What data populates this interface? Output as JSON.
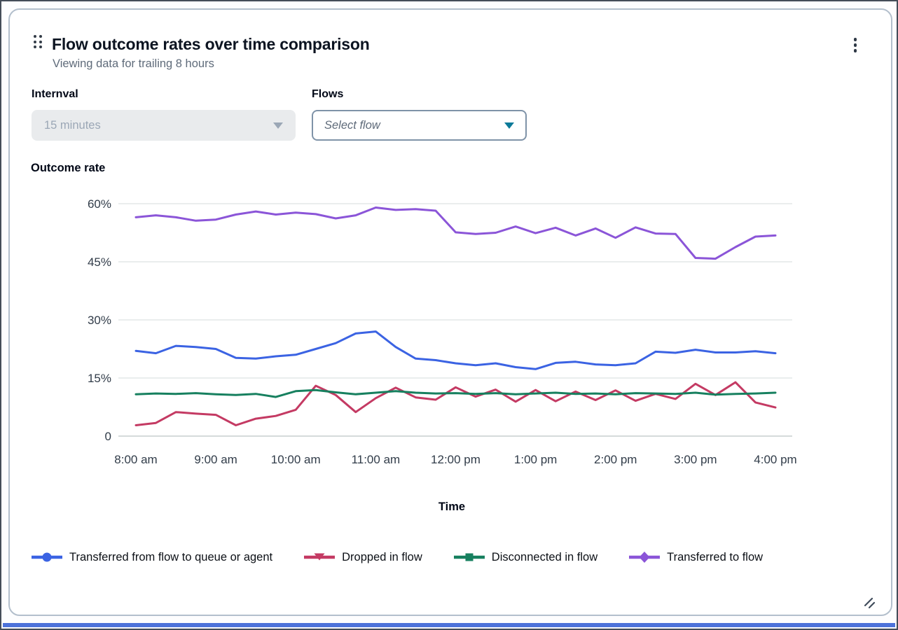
{
  "widget": {
    "title": "Flow outcome rates over time comparison",
    "subtitle": "Viewing data for trailing 8 hours"
  },
  "controls": {
    "interval": {
      "label": "Internval",
      "value": "15 minutes",
      "state": "disabled"
    },
    "flows": {
      "label": "Flows",
      "placeholder": "Select flow"
    }
  },
  "icons": {
    "drag_handle": "six-dot-drag-handle",
    "menu": "vertical-ellipsis",
    "interval_caret": "triangle-down",
    "flows_caret": "triangle-down",
    "resize": "diagonal-resize-lines"
  },
  "colors": {
    "card_border": "#b3bfcc",
    "grid_line": "#eaeded",
    "baseline": "#d5dbdb",
    "subtitle_text": "#5f6b7a",
    "disabled_bg": "#e9ebed",
    "flows_caret": "#0b7a99",
    "bottom_strip": "#4d72da"
  },
  "chart_data": {
    "type": "line",
    "title": "Outcome rate",
    "xlabel": "Time",
    "ylabel": "Outcome rate",
    "ylim": [
      0,
      60
    ],
    "grid": true,
    "legend_position": "bottom",
    "interval_minutes": 15,
    "x_range": [
      "8:00 am",
      "4:00 pm"
    ],
    "yticks": [
      0,
      15,
      30,
      45,
      60
    ],
    "ytick_labels": [
      "0",
      "15%",
      "30%",
      "45%",
      "60%"
    ],
    "x_tick_labels": [
      "8:00 am",
      "9:00 am",
      "10:00 am",
      "11:00 am",
      "12:00 pm",
      "1:00 pm",
      "2:00 pm",
      "3:00 pm",
      "4:00 pm"
    ],
    "series": [
      {
        "name": "Transferred from flow to queue or agent",
        "color": "#3b63e3",
        "marker": "circle",
        "values": [
          22.0,
          21.4,
          23.3,
          23.0,
          22.5,
          20.2,
          20.0,
          20.6,
          21.0,
          22.5,
          24.0,
          26.5,
          27.0,
          23.0,
          20.0,
          19.6,
          18.8,
          18.3,
          18.8,
          17.8,
          17.3,
          18.9,
          19.2,
          18.5,
          18.3,
          18.8,
          21.8,
          21.5,
          22.3,
          21.6,
          21.6,
          21.9,
          21.4
        ]
      },
      {
        "name": "Dropped in flow",
        "color": "#c43a63",
        "marker": "triangle-down",
        "values": [
          2.8,
          3.4,
          6.2,
          5.8,
          5.5,
          2.8,
          4.5,
          5.2,
          6.8,
          13.0,
          10.6,
          6.2,
          9.8,
          12.5,
          10.0,
          9.4,
          12.6,
          10.2,
          12.0,
          8.9,
          11.9,
          9.0,
          11.5,
          9.3,
          11.8,
          9.1,
          10.9,
          9.6,
          13.5,
          10.6,
          13.9,
          8.7,
          7.4
        ]
      },
      {
        "name": "Disconnected in flow",
        "color": "#17805f",
        "marker": "square",
        "values": [
          10.8,
          11.0,
          10.9,
          11.1,
          10.8,
          10.6,
          10.9,
          10.1,
          11.6,
          11.9,
          11.3,
          10.8,
          11.2,
          11.6,
          11.2,
          11.0,
          11.1,
          10.9,
          11.1,
          10.8,
          11.0,
          11.2,
          10.9,
          11.0,
          10.8,
          11.1,
          11.0,
          10.9,
          11.2,
          10.7,
          10.9,
          11.0,
          11.2
        ]
      },
      {
        "name": "Transferred to flow",
        "color": "#8b55d8",
        "marker": "diamond",
        "values": [
          56.5,
          57.0,
          56.5,
          55.6,
          55.9,
          57.2,
          58.0,
          57.2,
          57.7,
          57.3,
          56.2,
          57.0,
          59.0,
          58.4,
          58.6,
          58.2,
          52.6,
          52.2,
          52.5,
          54.1,
          52.4,
          53.8,
          51.8,
          53.6,
          51.2,
          53.9,
          52.3,
          52.2,
          46.0,
          45.8,
          48.8,
          51.5,
          51.8
        ]
      }
    ]
  }
}
